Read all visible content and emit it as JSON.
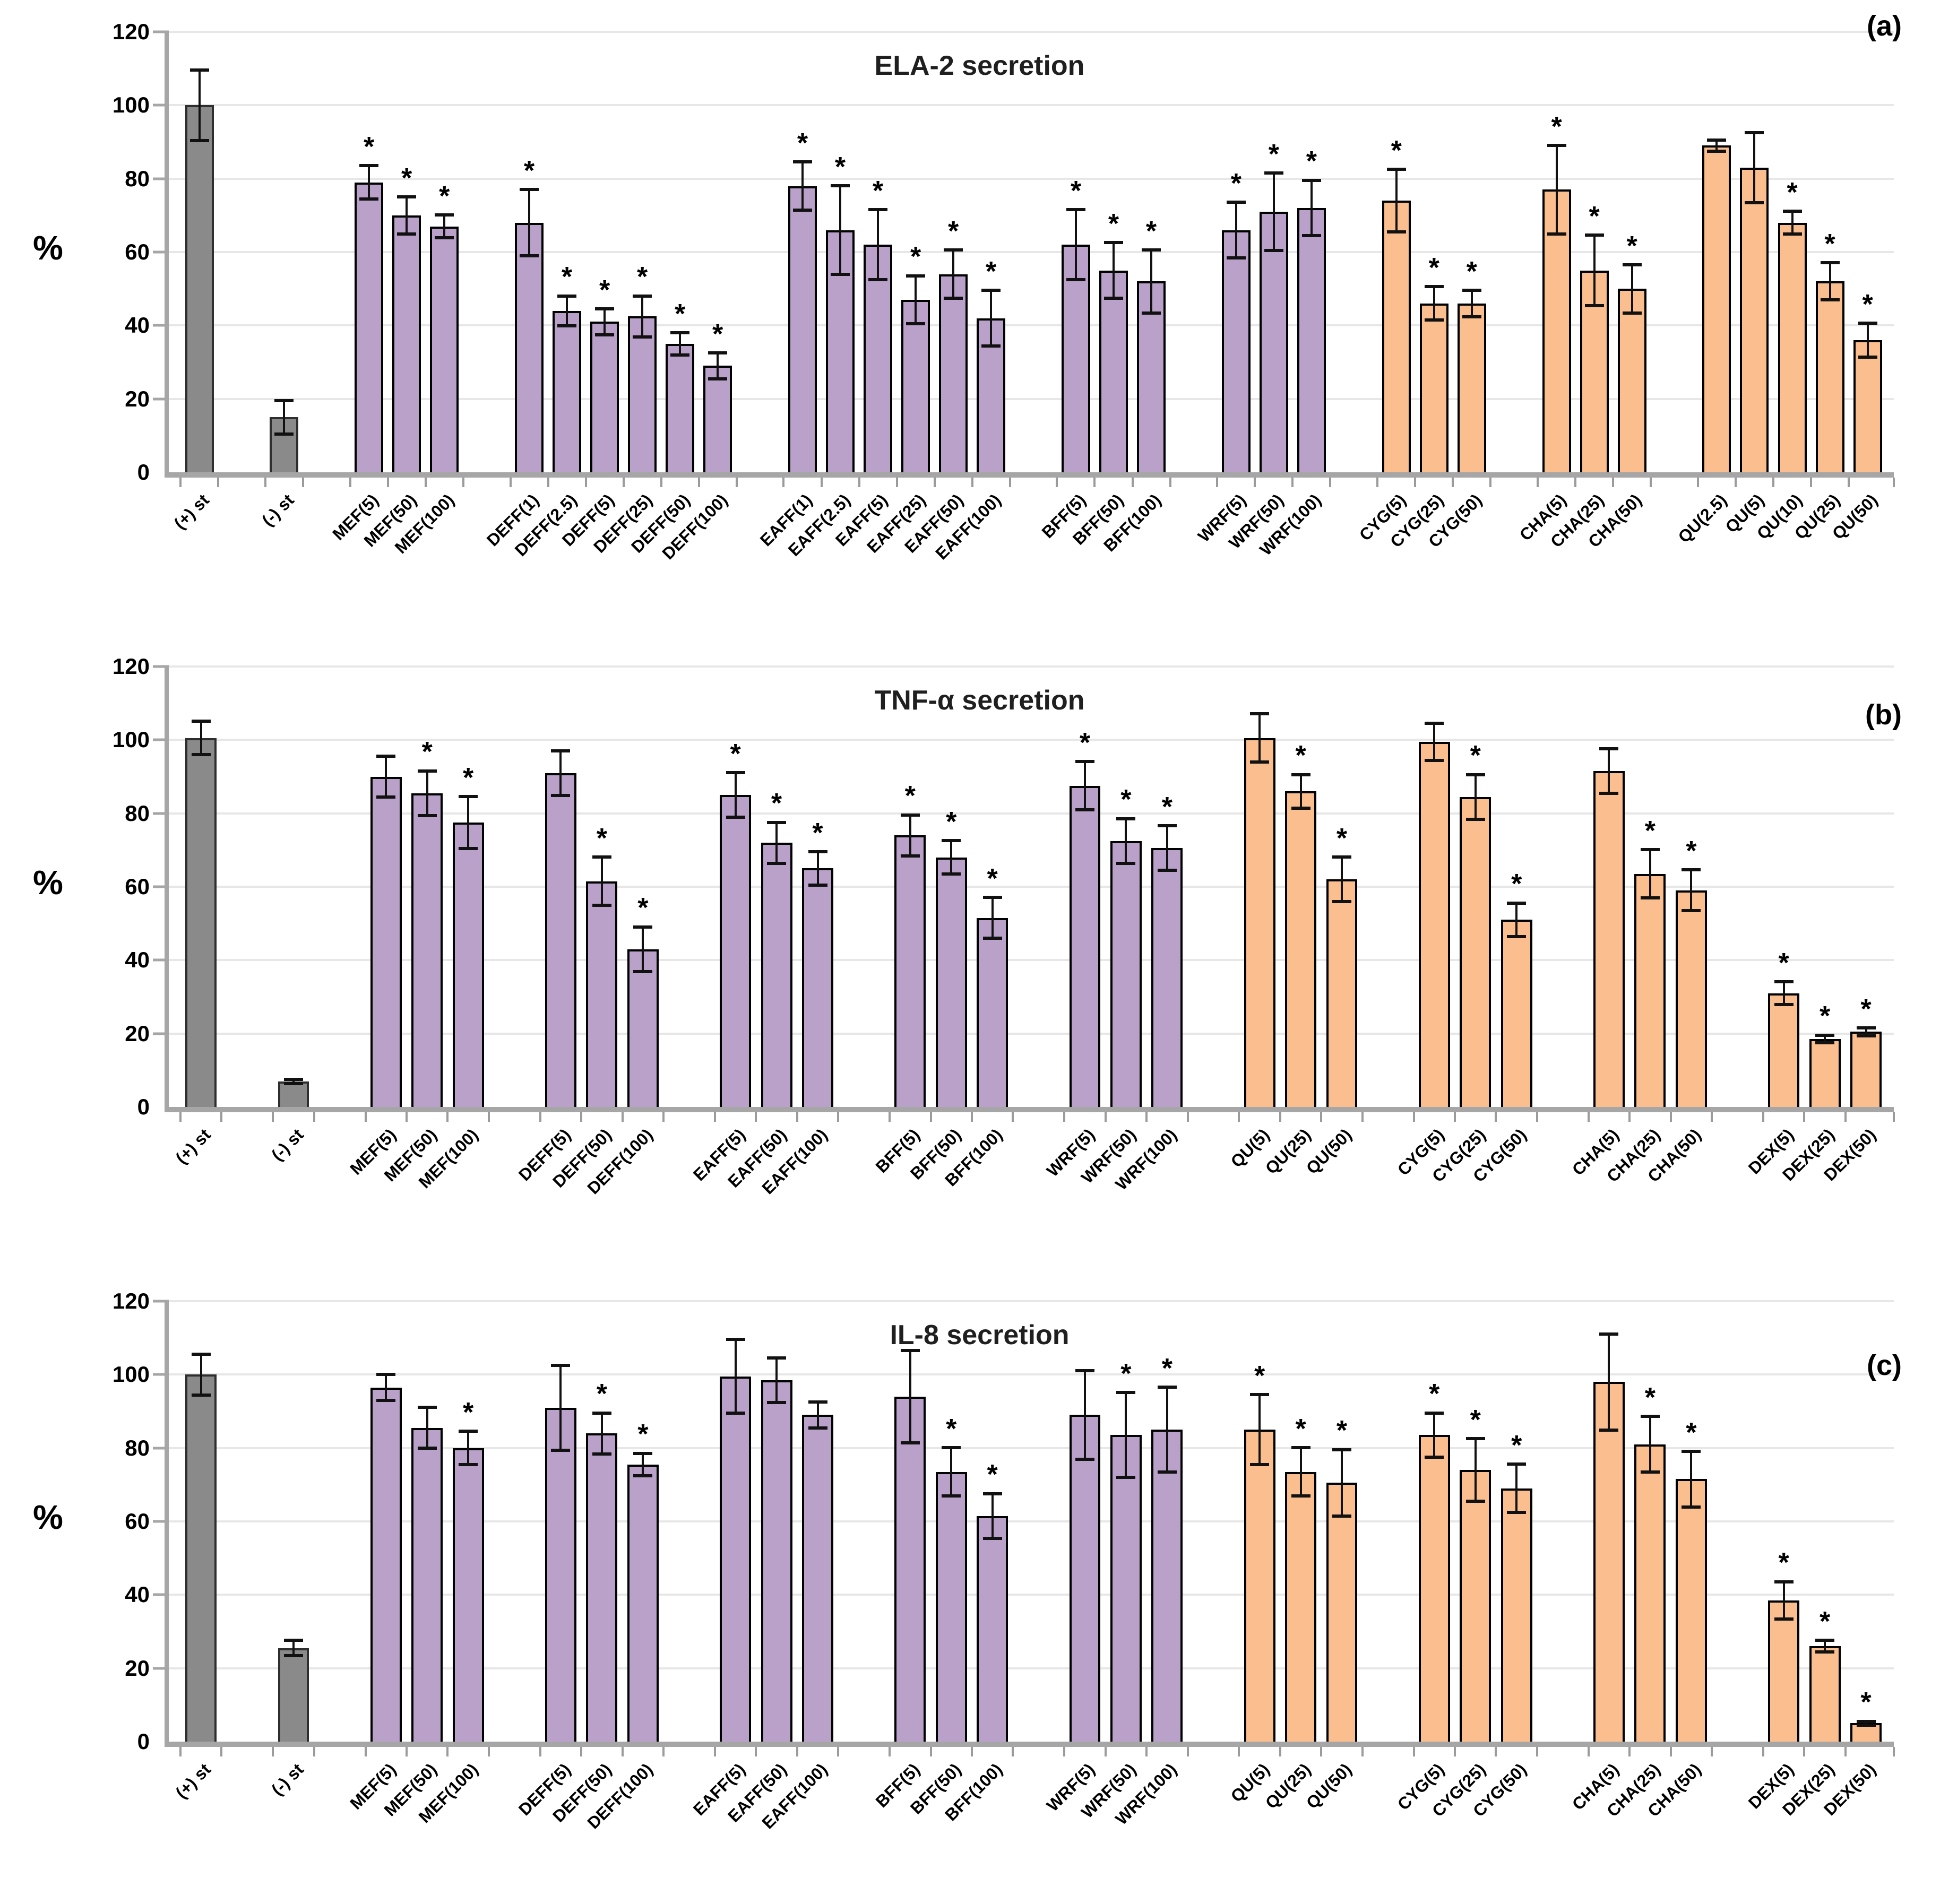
{
  "figure": {
    "significance_marker": "*",
    "panel_count": 3
  },
  "layout": {
    "colors": {
      "gray_bar": "#8A8A8A",
      "purple_bar": "#B9A1C9",
      "orange_bar": "#FBBE8E",
      "axis": "#A6A6A6",
      "gridline": "#E7E7E7",
      "error_bar": "#111111",
      "text": "#000000"
    },
    "legend": "none",
    "grid": "horizontal"
  },
  "chart_data": [
    {
      "type": "bar",
      "panel": "(a)",
      "title": "ELA-2 secretion",
      "ylabel": "%",
      "ylim": [
        0,
        120
      ],
      "yticks": [
        0,
        20,
        40,
        60,
        80,
        100,
        120
      ],
      "groups": [
        {
          "color": "gray",
          "bars": [
            {
              "label": "(+) st",
              "value": 100,
              "error": 10,
              "sig": false
            }
          ]
        },
        {
          "color": "gray",
          "bars": [
            {
              "label": "(-) st",
              "value": 15,
              "error": 5,
              "sig": false
            }
          ]
        },
        {
          "color": "purple",
          "bars": [
            {
              "label": "MEF(5)",
              "value": 79,
              "error": 5,
              "sig": true
            },
            {
              "label": "MEF(50)",
              "value": 70,
              "error": 5.5,
              "sig": true
            },
            {
              "label": "MEF(100)",
              "value": 67,
              "error": 3.5,
              "sig": true
            }
          ]
        },
        {
          "color": "purple",
          "bars": [
            {
              "label": "DEFF(1)",
              "value": 68,
              "error": 9.5,
              "sig": true
            },
            {
              "label": "DEFF(2.5)",
              "value": 44,
              "error": 4.5,
              "sig": true
            },
            {
              "label": "DEFF(5)",
              "value": 41,
              "error": 4,
              "sig": true
            },
            {
              "label": "DEFF(25)",
              "value": 42.5,
              "error": 6,
              "sig": true
            },
            {
              "label": "DEFF(50)",
              "value": 35,
              "error": 3.5,
              "sig": true
            },
            {
              "label": "DEFF(100)",
              "value": 29,
              "error": 4,
              "sig": true
            }
          ]
        },
        {
          "color": "purple",
          "bars": [
            {
              "label": "EAFF(1)",
              "value": 78,
              "error": 7,
              "sig": true
            },
            {
              "label": "EAFF(2.5)",
              "value": 66,
              "error": 12.5,
              "sig": true
            },
            {
              "label": "EAFF(5)",
              "value": 62,
              "error": 10,
              "sig": true
            },
            {
              "label": "EAFF(25)",
              "value": 47,
              "error": 7,
              "sig": true
            },
            {
              "label": "EAFF(50)",
              "value": 54,
              "error": 7,
              "sig": true
            },
            {
              "label": "EAFF(100)",
              "value": 42,
              "error": 8,
              "sig": true
            }
          ]
        },
        {
          "color": "purple",
          "bars": [
            {
              "label": "BFF(5)",
              "value": 62,
              "error": 10,
              "sig": true
            },
            {
              "label": "BFF(50)",
              "value": 55,
              "error": 8,
              "sig": true
            },
            {
              "label": "BFF(100)",
              "value": 52,
              "error": 9,
              "sig": true
            }
          ]
        },
        {
          "color": "purple",
          "bars": [
            {
              "label": "WRF(5)",
              "value": 66,
              "error": 8,
              "sig": true
            },
            {
              "label": "WRF(50)",
              "value": 71,
              "error": 11,
              "sig": true
            },
            {
              "label": "WRF(100)",
              "value": 72,
              "error": 8,
              "sig": true
            }
          ]
        },
        {
          "color": "orange",
          "bars": [
            {
              "label": "CYG(5)",
              "value": 74,
              "error": 9,
              "sig": true
            },
            {
              "label": "CYG(25)",
              "value": 46,
              "error": 5,
              "sig": true
            },
            {
              "label": "CYG(50)",
              "value": 46,
              "error": 4,
              "sig": true
            }
          ]
        },
        {
          "color": "orange",
          "bars": [
            {
              "label": "CHA(5)",
              "value": 77,
              "error": 12.5,
              "sig": true
            },
            {
              "label": "CHA(25)",
              "value": 55,
              "error": 10,
              "sig": true
            },
            {
              "label": "CHA(50)",
              "value": 50,
              "error": 7,
              "sig": true
            }
          ]
        },
        {
          "color": "orange",
          "bars": [
            {
              "label": "QU(2.5)",
              "value": 89,
              "error": 2,
              "sig": false
            },
            {
              "label": "QU(5)",
              "value": 83,
              "error": 10,
              "sig": false
            },
            {
              "label": "QU(10)",
              "value": 68,
              "error": 3.5,
              "sig": true
            },
            {
              "label": "QU(25)",
              "value": 52,
              "error": 5.5,
              "sig": true
            },
            {
              "label": "QU(50)",
              "value": 36,
              "error": 5,
              "sig": true
            }
          ]
        }
      ]
    },
    {
      "type": "bar",
      "panel": "(b)",
      "title": "TNF-α secretion",
      "ylabel": "%",
      "ylim": [
        0,
        120
      ],
      "yticks": [
        0,
        20,
        40,
        60,
        80,
        100,
        120
      ],
      "groups": [
        {
          "color": "gray",
          "bars": [
            {
              "label": "(+) st",
              "value": 100.5,
              "error": 5,
              "sig": false
            }
          ]
        },
        {
          "color": "gray",
          "bars": [
            {
              "label": "(-) st",
              "value": 7,
              "error": 1,
              "sig": false
            }
          ]
        },
        {
          "color": "purple",
          "bars": [
            {
              "label": "MEF(5)",
              "value": 90,
              "error": 6,
              "sig": false
            },
            {
              "label": "MEF(50)",
              "value": 85.5,
              "error": 6.5,
              "sig": true
            },
            {
              "label": "MEF(100)",
              "value": 77.5,
              "error": 7.5,
              "sig": true
            }
          ]
        },
        {
          "color": "purple",
          "bars": [
            {
              "label": "DEFF(5)",
              "value": 91,
              "error": 6.5,
              "sig": false
            },
            {
              "label": "DEFF(50)",
              "value": 61.5,
              "error": 7,
              "sig": true
            },
            {
              "label": "DEFF(100)",
              "value": 43,
              "error": 6.5,
              "sig": true
            }
          ]
        },
        {
          "color": "purple",
          "bars": [
            {
              "label": "EAFF(5)",
              "value": 85,
              "error": 6.5,
              "sig": true
            },
            {
              "label": "EAFF(50)",
              "value": 72,
              "error": 6,
              "sig": true
            },
            {
              "label": "EAFF(100)",
              "value": 65,
              "error": 5,
              "sig": true
            }
          ]
        },
        {
          "color": "purple",
          "bars": [
            {
              "label": "BFF(5)",
              "value": 74,
              "error": 6,
              "sig": true
            },
            {
              "label": "BFF(50)",
              "value": 68,
              "error": 5,
              "sig": true
            },
            {
              "label": "BFF(100)",
              "value": 51.5,
              "error": 6,
              "sig": true
            }
          ]
        },
        {
          "color": "purple",
          "bars": [
            {
              "label": "WRF(5)",
              "value": 87.5,
              "error": 7,
              "sig": true
            },
            {
              "label": "WRF(50)",
              "value": 72.5,
              "error": 6.5,
              "sig": true
            },
            {
              "label": "WRF(100)",
              "value": 70.5,
              "error": 6.5,
              "sig": true
            }
          ]
        },
        {
          "color": "orange",
          "bars": [
            {
              "label": "QU(5)",
              "value": 100.5,
              "error": 7,
              "sig": false
            },
            {
              "label": "QU(25)",
              "value": 86,
              "error": 5,
              "sig": true
            },
            {
              "label": "QU(50)",
              "value": 62,
              "error": 6.5,
              "sig": true
            }
          ]
        },
        {
          "color": "orange",
          "bars": [
            {
              "label": "CYG(5)",
              "value": 99.5,
              "error": 5.5,
              "sig": false
            },
            {
              "label": "CYG(25)",
              "value": 84.5,
              "error": 6.5,
              "sig": true
            },
            {
              "label": "CYG(50)",
              "value": 51,
              "error": 5,
              "sig": true
            }
          ]
        },
        {
          "color": "orange",
          "bars": [
            {
              "label": "CHA(5)",
              "value": 91.5,
              "error": 6.5,
              "sig": false
            },
            {
              "label": "CHA(25)",
              "value": 63.5,
              "error": 7,
              "sig": true
            },
            {
              "label": "CHA(50)",
              "value": 59,
              "error": 6,
              "sig": true
            }
          ]
        },
        {
          "color": "orange",
          "bars": [
            {
              "label": "DEX(5)",
              "value": 31,
              "error": 3.5,
              "sig": true
            },
            {
              "label": "DEX(25)",
              "value": 18.5,
              "error": 1.5,
              "sig": true
            },
            {
              "label": "DEX(50)",
              "value": 20.5,
              "error": 1.5,
              "sig": true
            }
          ]
        }
      ]
    },
    {
      "type": "bar",
      "panel": "(c)",
      "title": "IL-8 secretion",
      "ylabel": "%",
      "ylim": [
        0,
        120
      ],
      "yticks": [
        0,
        20,
        40,
        60,
        80,
        100,
        120
      ],
      "groups": [
        {
          "color": "gray",
          "bars": [
            {
              "label": "(+) st",
              "value": 100,
              "error": 6,
              "sig": false
            }
          ]
        },
        {
          "color": "gray",
          "bars": [
            {
              "label": "(-) st",
              "value": 25.5,
              "error": 2.5,
              "sig": false
            }
          ]
        },
        {
          "color": "purple",
          "bars": [
            {
              "label": "MEF(5)",
              "value": 96.5,
              "error": 4,
              "sig": false
            },
            {
              "label": "MEF(50)",
              "value": 85.5,
              "error": 6,
              "sig": false
            },
            {
              "label": "MEF(100)",
              "value": 80,
              "error": 5,
              "sig": true
            }
          ]
        },
        {
          "color": "purple",
          "bars": [
            {
              "label": "DEFF(5)",
              "value": 91,
              "error": 12,
              "sig": false
            },
            {
              "label": "DEFF(50)",
              "value": 84,
              "error": 6,
              "sig": true
            },
            {
              "label": "DEFF(100)",
              "value": 75.5,
              "error": 3.5,
              "sig": true
            }
          ]
        },
        {
          "color": "purple",
          "bars": [
            {
              "label": "EAFF(5)",
              "value": 99.5,
              "error": 10.5,
              "sig": false
            },
            {
              "label": "EAFF(50)",
              "value": 98.5,
              "error": 6.5,
              "sig": false
            },
            {
              "label": "EAFF(100)",
              "value": 89,
              "error": 4,
              "sig": false
            }
          ]
        },
        {
          "color": "purple",
          "bars": [
            {
              "label": "BFF(5)",
              "value": 94,
              "error": 13,
              "sig": false
            },
            {
              "label": "BFF(50)",
              "value": 73.5,
              "error": 7,
              "sig": true
            },
            {
              "label": "BFF(100)",
              "value": 61.5,
              "error": 6.5,
              "sig": true
            }
          ]
        },
        {
          "color": "purple",
          "bars": [
            {
              "label": "WRF(5)",
              "value": 89,
              "error": 12.5,
              "sig": false
            },
            {
              "label": "WRF(50)",
              "value": 83.5,
              "error": 12,
              "sig": true
            },
            {
              "label": "WRF(100)",
              "value": 85,
              "error": 12,
              "sig": true
            }
          ]
        },
        {
          "color": "orange",
          "bars": [
            {
              "label": "QU(5)",
              "value": 85,
              "error": 10,
              "sig": true
            },
            {
              "label": "QU(25)",
              "value": 73.5,
              "error": 7,
              "sig": true
            },
            {
              "label": "QU(50)",
              "value": 70.5,
              "error": 9.5,
              "sig": true
            }
          ]
        },
        {
          "color": "orange",
          "bars": [
            {
              "label": "CYG(5)",
              "value": 83.5,
              "error": 6.5,
              "sig": true
            },
            {
              "label": "CYG(25)",
              "value": 74,
              "error": 9,
              "sig": true
            },
            {
              "label": "CYG(50)",
              "value": 69,
              "error": 7,
              "sig": true
            }
          ]
        },
        {
          "color": "orange",
          "bars": [
            {
              "label": "CHA(5)",
              "value": 98,
              "error": 13.5,
              "sig": false
            },
            {
              "label": "CHA(25)",
              "value": 81,
              "error": 8,
              "sig": true
            },
            {
              "label": "CHA(50)",
              "value": 71.5,
              "error": 8,
              "sig": true
            }
          ]
        },
        {
          "color": "orange",
          "bars": [
            {
              "label": "DEX(5)",
              "value": 38.5,
              "error": 5.5,
              "sig": true
            },
            {
              "label": "DEX(25)",
              "value": 26,
              "error": 2,
              "sig": true
            },
            {
              "label": "DEX(50)",
              "value": 5,
              "error": 1,
              "sig": true
            }
          ]
        }
      ]
    }
  ]
}
